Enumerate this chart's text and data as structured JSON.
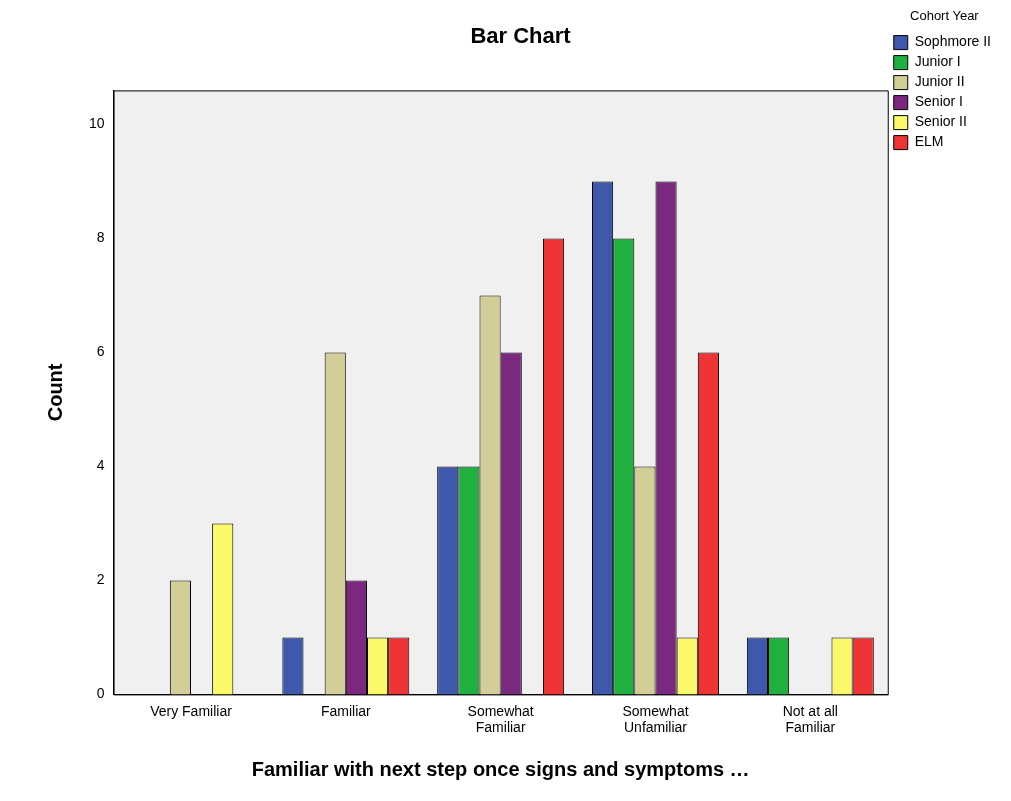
{
  "chart_data": {
    "type": "bar",
    "title": "Bar Chart",
    "xlabel": "Familiar with next step once signs and symptoms …",
    "ylabel": "Count",
    "legend_title": "Cohort Year",
    "legend": "top right",
    "categories": [
      "Very Familiar",
      "Familiar",
      "Somewhat Familiar",
      "Somewhat Unfamiliar",
      "Not at all Familiar"
    ],
    "series": [
      {
        "name": "Sophmore II",
        "color": "#3e58ac",
        "values": [
          null,
          1,
          4,
          9,
          1
        ]
      },
      {
        "name": "Junior I",
        "color": "#1fb040",
        "values": [
          null,
          null,
          4,
          8,
          1
        ]
      },
      {
        "name": "Junior II",
        "color": "#d3ce97",
        "values": [
          2,
          6,
          7,
          4,
          null
        ]
      },
      {
        "name": "Senior I",
        "color": "#7b287f",
        "values": [
          null,
          2,
          6,
          9,
          null
        ]
      },
      {
        "name": "Senior II",
        "color": "#fbf869",
        "values": [
          3,
          1,
          null,
          1,
          1
        ]
      },
      {
        "name": "ELM",
        "color": "#ee3434",
        "values": [
          null,
          1,
          8,
          6,
          1
        ]
      }
    ],
    "ylim": [
      0,
      10.6
    ],
    "yticks": [
      0,
      2,
      4,
      6,
      8,
      10
    ],
    "grid": false
  }
}
